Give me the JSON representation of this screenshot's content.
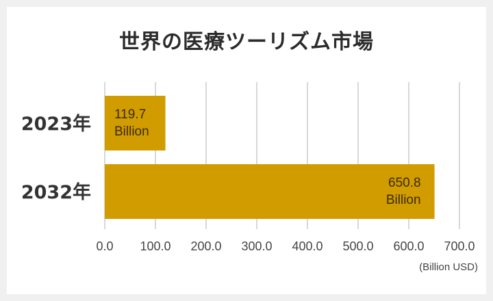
{
  "chart_data": {
    "type": "bar",
    "orientation": "horizontal",
    "title": "世界の医療ツーリズム市場",
    "categories": [
      "2023年",
      "2032年"
    ],
    "values": [
      119.7,
      650.8
    ],
    "value_labels": [
      "119.7\nBillion",
      "650.8\nBillion"
    ],
    "xlim": [
      0,
      700
    ],
    "xticks": [
      0,
      100,
      200,
      300,
      400,
      500,
      600,
      700
    ],
    "xtick_labels": [
      "0.0",
      "100.0",
      "200.0",
      "300.0",
      "400.0",
      "500.0",
      "600.0",
      "700.0"
    ],
    "unit_label": "(Billion USD)",
    "grid": true,
    "bar_color": "#d19c00",
    "label_color": "#3a2a00"
  }
}
